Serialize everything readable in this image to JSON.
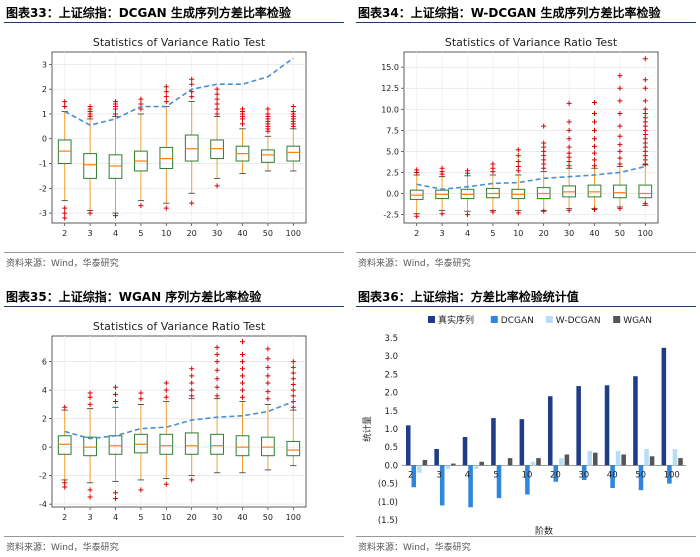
{
  "colors": {
    "box": "#2e7d32",
    "whisker": "#f0a030",
    "flier": "#e00000",
    "median": "#ff7f0e",
    "mean_line": "#4a90d0",
    "rule": "#1e3a6e",
    "bar_real": "#1f3c88",
    "bar_dcgan": "#2e86de",
    "bar_wdcgan": "#b8def5",
    "bar_wgan": "#555555"
  },
  "chart_data": [
    {
      "type": "box",
      "figure_label": "图表33：",
      "figure_title": "上证综指：DCGAN 生成序列方差比率检验",
      "title": "Statistics of Variance Ratio Test",
      "source": "资料来源：Wind，华泰研究",
      "categories": [
        "2",
        "3",
        "4",
        "5",
        "10",
        "20",
        "30",
        "40",
        "50",
        "100"
      ],
      "ylim": [
        -3.4,
        3.5
      ],
      "yticks": [
        -3,
        -2,
        -1,
        0,
        1,
        2,
        3
      ],
      "grid": true,
      "boxes": [
        {
          "q1": -1.0,
          "med": -0.5,
          "q3": -0.05,
          "lo": -2.5,
          "hi": 1.1
        },
        {
          "q1": -1.6,
          "med": -1.05,
          "q3": -0.6,
          "lo": -2.9,
          "hi": 0.8
        },
        {
          "q1": -1.6,
          "med": -1.1,
          "q3": -0.65,
          "lo": -3.0,
          "hi": 0.9
        },
        {
          "q1": -1.3,
          "med": -0.9,
          "q3": -0.5,
          "lo": -2.5,
          "hi": 1.0
        },
        {
          "q1": -1.2,
          "med": -0.8,
          "q3": -0.35,
          "lo": -2.6,
          "hi": 1.3
        },
        {
          "q1": -0.9,
          "med": -0.4,
          "q3": 0.15,
          "lo": -2.2,
          "hi": 1.5
        },
        {
          "q1": -0.8,
          "med": -0.4,
          "q3": -0.05,
          "lo": -1.6,
          "hi": 0.9
        },
        {
          "q1": -0.9,
          "med": -0.6,
          "q3": -0.3,
          "lo": -1.4,
          "hi": 0.4
        },
        {
          "q1": -0.95,
          "med": -0.65,
          "q3": -0.45,
          "lo": -1.3,
          "hi": 0.1
        },
        {
          "q1": -0.9,
          "med": -0.55,
          "q3": -0.3,
          "lo": -1.3,
          "hi": 0.4
        }
      ],
      "fliers": [
        [
          -3.2,
          -3.0,
          -2.8,
          1.3,
          1.5
        ],
        [
          -3.0,
          0.9,
          1.0,
          1.1,
          1.2,
          1.3
        ],
        [
          -3.1,
          1.0,
          1.2,
          1.3,
          1.4,
          1.5
        ],
        [
          -2.7,
          1.2,
          1.4,
          1.6
        ],
        [
          -2.8,
          1.5,
          1.7,
          1.9,
          2.1
        ],
        [
          -2.6,
          1.7,
          1.9,
          2.2,
          2.4
        ],
        [
          -1.9,
          1.0,
          1.2,
          1.4,
          1.6,
          1.8,
          2.0
        ],
        [
          0.6,
          0.8,
          0.9,
          1.0,
          1.1,
          1.2
        ],
        [
          0.3,
          0.4,
          0.5,
          0.6,
          0.7,
          0.8,
          0.9,
          1.0,
          1.2
        ],
        [
          0.5,
          0.6,
          0.7,
          0.8,
          0.9,
          1.0,
          1.1,
          1.3
        ]
      ],
      "mean_line": [
        1.1,
        0.55,
        0.8,
        1.3,
        1.3,
        2.0,
        2.2,
        2.2,
        2.5,
        3.25
      ]
    },
    {
      "type": "box",
      "figure_label": "图表34：",
      "figure_title": "上证综指：W-DCGAN 生成序列方差比率检验",
      "title": "Statistics of Variance Ratio Test",
      "source": "资料来源：Wind，华泰研究",
      "categories": [
        "2",
        "3",
        "4",
        "5",
        "10",
        "20",
        "30",
        "40",
        "50",
        "100"
      ],
      "ylim": [
        -3.5,
        16.8
      ],
      "yticks": [
        -2.5,
        0.0,
        2.5,
        5.0,
        7.5,
        10.0,
        12.5,
        15.0
      ],
      "grid": true,
      "boxes": [
        {
          "q1": -0.7,
          "med": -0.2,
          "q3": 0.4,
          "lo": -2.4,
          "hi": 2.2
        },
        {
          "q1": -0.6,
          "med": -0.1,
          "q3": 0.4,
          "lo": -2.0,
          "hi": 2.0
        },
        {
          "q1": -0.6,
          "med": -0.1,
          "q3": 0.5,
          "lo": -2.1,
          "hi": 2.1
        },
        {
          "q1": -0.5,
          "med": 0.0,
          "q3": 0.6,
          "lo": -2.0,
          "hi": 2.2
        },
        {
          "q1": -0.6,
          "med": -0.1,
          "q3": 0.5,
          "lo": -2.0,
          "hi": 2.2
        },
        {
          "q1": -0.6,
          "med": 0.0,
          "q3": 0.7,
          "lo": -2.0,
          "hi": 2.6
        },
        {
          "q1": -0.4,
          "med": 0.2,
          "q3": 0.9,
          "lo": -1.8,
          "hi": 3.0
        },
        {
          "q1": -0.4,
          "med": 0.2,
          "q3": 1.0,
          "lo": -1.8,
          "hi": 3.0
        },
        {
          "q1": -0.5,
          "med": 0.1,
          "q3": 1.0,
          "lo": -1.6,
          "hi": 3.2
        },
        {
          "q1": -0.5,
          "med": 0.0,
          "q3": 1.0,
          "lo": -1.4,
          "hi": 3.4
        }
      ],
      "fliers": [
        [
          -2.7,
          2.5,
          2.8
        ],
        [
          -2.4,
          2.3,
          2.6,
          3.0
        ],
        [
          -2.5,
          2.4,
          2.7
        ],
        [
          -2.2,
          2.6,
          3.0,
          3.5
        ],
        [
          -2.3,
          2.7,
          3.2,
          3.8,
          4.5,
          5.2
        ],
        [
          -2.1,
          3.0,
          3.5,
          4.0,
          4.5,
          5.0,
          5.5,
          6.0,
          8.0
        ],
        [
          -2.0,
          3.3,
          3.8,
          4.3,
          4.8,
          5.5,
          6.5,
          7.5,
          8.5,
          10.7
        ],
        [
          -1.9,
          3.3,
          4.0,
          4.8,
          5.6,
          6.5,
          7.5,
          8.5,
          9.5,
          10.8
        ],
        [
          -1.8,
          3.5,
          4.2,
          5.0,
          5.8,
          6.8,
          8.0,
          9.5,
          11.0,
          12.5,
          14.0
        ],
        [
          -1.2,
          3.5,
          4.0,
          4.5,
          5.0,
          5.5,
          6.0,
          6.5,
          7.0,
          7.5,
          8.0,
          8.5,
          9.0,
          9.5,
          10.0,
          11.0,
          12.5,
          13.5,
          16.0
        ]
      ],
      "mean_line": [
        1.1,
        0.5,
        0.8,
        1.2,
        1.3,
        1.8,
        2.0,
        2.2,
        2.5,
        3.2
      ]
    },
    {
      "type": "box",
      "figure_label": "图表35：",
      "figure_title": "上证综指：WGAN 序列方差比率检验",
      "title": "Statistics of Variance Ratio Test",
      "source": "资料来源：Wind，华泰研究",
      "categories": [
        "2",
        "3",
        "4",
        "5",
        "10",
        "20",
        "30",
        "40",
        "50",
        "100"
      ],
      "ylim": [
        -4.2,
        7.8
      ],
      "yticks": [
        -4,
        -2,
        0,
        2,
        4,
        6
      ],
      "grid": true,
      "boxes": [
        {
          "q1": -0.5,
          "med": 0.2,
          "q3": 0.8,
          "lo": -2.3,
          "hi": 2.6
        },
        {
          "q1": -0.6,
          "med": 0.0,
          "q3": 0.7,
          "lo": -2.5,
          "hi": 2.7
        },
        {
          "q1": -0.5,
          "med": 0.1,
          "q3": 0.8,
          "lo": -2.4,
          "hi": 2.8
        },
        {
          "q1": -0.4,
          "med": 0.2,
          "q3": 0.9,
          "lo": -2.3,
          "hi": 3.0
        },
        {
          "q1": -0.5,
          "med": 0.1,
          "q3": 0.9,
          "lo": -2.2,
          "hi": 3.2
        },
        {
          "q1": -0.5,
          "med": 0.1,
          "q3": 1.0,
          "lo": -2.0,
          "hi": 3.4
        },
        {
          "q1": -0.5,
          "med": 0.1,
          "q3": 0.9,
          "lo": -1.8,
          "hi": 3.4
        },
        {
          "q1": -0.6,
          "med": 0.0,
          "q3": 0.8,
          "lo": -1.8,
          "hi": 3.2
        },
        {
          "q1": -0.6,
          "med": 0.0,
          "q3": 0.7,
          "lo": -1.6,
          "hi": 3.0
        },
        {
          "q1": -0.6,
          "med": -0.2,
          "q3": 0.4,
          "lo": -1.3,
          "hi": 2.6
        }
      ],
      "fliers": [
        [
          -2.5,
          -2.8,
          2.8
        ],
        [
          -3.0,
          -3.5,
          3.0,
          3.5,
          3.8
        ],
        [
          -3.2,
          -3.6,
          3.2,
          3.7,
          4.2
        ],
        [
          -3.0,
          3.4,
          3.8
        ],
        [
          -2.6,
          3.5,
          4.0,
          4.5
        ],
        [
          -2.3,
          3.6,
          4.0,
          4.5,
          5.0,
          5.5
        ],
        [
          3.6,
          4.2,
          4.8,
          5.4,
          6.0,
          6.5,
          7.0
        ],
        [
          3.5,
          4.0,
          4.5,
          5.0,
          5.5,
          6.0,
          6.5,
          7.4
        ],
        [
          3.4,
          3.9,
          4.5,
          5.0,
          5.6,
          6.2,
          6.9
        ],
        [
          2.8,
          3.2,
          3.6,
          4.0,
          4.4,
          4.8,
          5.2,
          5.6,
          6.0
        ]
      ],
      "mean_line": [
        1.1,
        0.6,
        0.8,
        1.3,
        1.4,
        1.9,
        2.1,
        2.2,
        2.5,
        3.2
      ]
    },
    {
      "type": "bar",
      "figure_label": "图表36：",
      "figure_title": "上证综指：方差比率检验统计值",
      "source": "资料来源：Wind，华泰研究",
      "categories": [
        "2",
        "3",
        "4",
        "5",
        "10",
        "20",
        "30",
        "40",
        "50",
        "100"
      ],
      "xlabel": "阶数",
      "ylabel": "统计量",
      "ylim": [
        -1.5,
        3.5
      ],
      "ytick_labels": [
        {
          "v": 3.5,
          "t": "3.5"
        },
        {
          "v": 3.0,
          "t": "3.0"
        },
        {
          "v": 2.5,
          "t": "2.5"
        },
        {
          "v": 2.0,
          "t": "2.0"
        },
        {
          "v": 1.5,
          "t": "1.5"
        },
        {
          "v": 1.0,
          "t": "1.0"
        },
        {
          "v": 0.5,
          "t": "0.5"
        },
        {
          "v": 0.0,
          "t": "0.0"
        },
        {
          "v": -0.5,
          "t": "(0.5)"
        },
        {
          "v": -1.0,
          "t": "(1.0)"
        },
        {
          "v": -1.5,
          "t": "(1.5)"
        }
      ],
      "legend": "top",
      "series": [
        {
          "name": "真实序列",
          "values": [
            1.1,
            0.45,
            0.78,
            1.3,
            1.27,
            1.9,
            2.18,
            2.2,
            2.45,
            3.23
          ]
        },
        {
          "name": "DCGAN",
          "values": [
            -0.6,
            -1.1,
            -1.15,
            -0.9,
            -0.8,
            -0.45,
            -0.4,
            -0.62,
            -0.68,
            -0.5
          ]
        },
        {
          "name": "W-DCGAN",
          "values": [
            -0.2,
            -0.1,
            -0.1,
            0.0,
            0.1,
            0.2,
            0.4,
            0.4,
            0.45,
            0.45
          ]
        },
        {
          "name": "WGAN",
          "values": [
            0.15,
            0.05,
            0.1,
            0.2,
            0.2,
            0.3,
            0.35,
            0.3,
            0.25,
            0.2
          ]
        }
      ]
    }
  ]
}
